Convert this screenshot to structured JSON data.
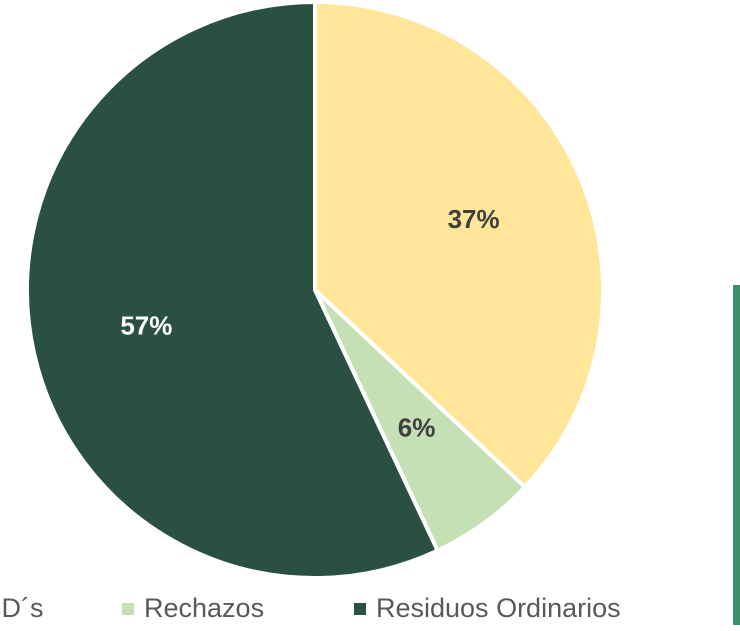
{
  "chart_data": {
    "type": "pie",
    "categories": [
      "CD´s",
      "Rechazos",
      "Residuos Ordinarios"
    ],
    "values": [
      37,
      6,
      57
    ],
    "value_labels": [
      "37%",
      "6%",
      "57%"
    ],
    "colors": [
      "#FFE699",
      "#C5E0B4",
      "#2A5042"
    ],
    "label_colors": [
      "#404040",
      "#404040",
      "#ffffff"
    ]
  }
}
